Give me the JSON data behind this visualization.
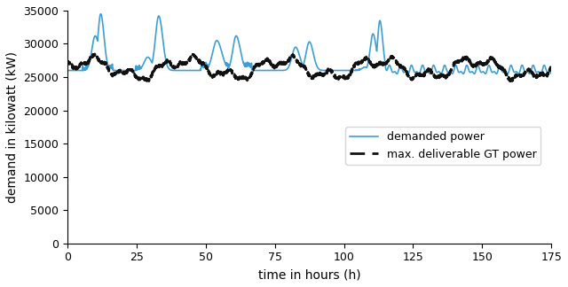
{
  "xlabel": "time in hours (h)",
  "ylabel": "demand in kilowatt (kW)",
  "xlim": [
    0,
    175
  ],
  "ylim": [
    0,
    35000
  ],
  "yticks": [
    0,
    5000,
    10000,
    15000,
    20000,
    25000,
    30000,
    35000
  ],
  "xticks": [
    0,
    25,
    50,
    75,
    100,
    125,
    150,
    175
  ],
  "legend_labels": [
    "demanded power",
    "max. deliverable GT power"
  ],
  "demand_color": "#3d9fd4",
  "gt_color": "#111111",
  "gt_linewidth": 2.0,
  "demand_linewidth": 1.2
}
